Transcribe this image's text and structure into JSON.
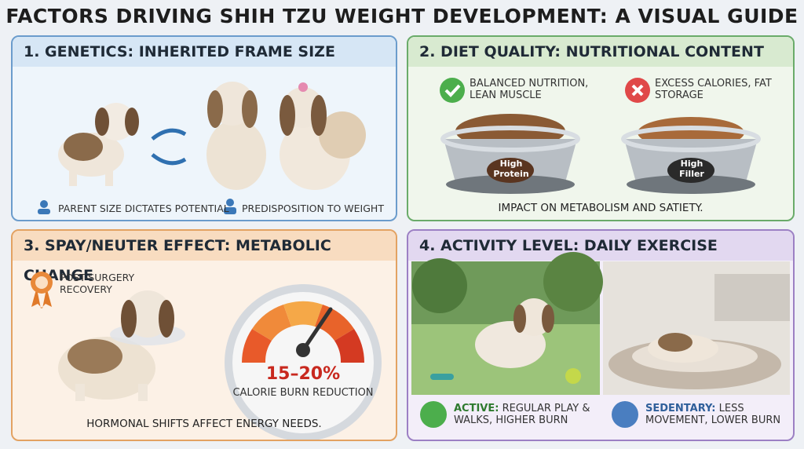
{
  "title": "FACTORS DRIVING SHIH TZU WEIGHT DEVELOPMENT: A VISUAL GUIDE",
  "panels": [
    {
      "heading": "1. GENETICS: INHERITED FRAME SIZE",
      "items": [
        "PARENT SIZE DICTATES POTENTIAL",
        "PREDISPOSITION TO WEIGHT"
      ]
    },
    {
      "heading": "2. DIET QUALITY: NUTRITIONAL CONTENT",
      "items": [
        "BALANCED NUTRITION, LEAN MUSCLE",
        "EXCESS CALORIES, FAT STORAGE"
      ],
      "bowls": [
        "High Protein",
        "High Filler"
      ],
      "caption": "IMPACT ON METABOLISM AND SATIETY."
    },
    {
      "heading": "3. SPAY/NEUTER EFFECT: METABOLIC CHANGE",
      "badge": "POST-SURGERY RECOVERY",
      "gauge_value": "15–20%",
      "gauge_label": "CALORIE BURN REDUCTION",
      "caption": "HORMONAL SHIFTS AFFECT ENERGY NEEDS."
    },
    {
      "heading": "4. ACTIVITY LEVEL: DAILY EXERCISE",
      "items": [
        {
          "label": "ACTIVE:",
          "text": "REGULAR PLAY & WALKS, HIGHER BURN"
        },
        {
          "label": "SEDENTARY:",
          "text": "LESS MOVEMENT, LOWER BURN"
        }
      ]
    }
  ]
}
